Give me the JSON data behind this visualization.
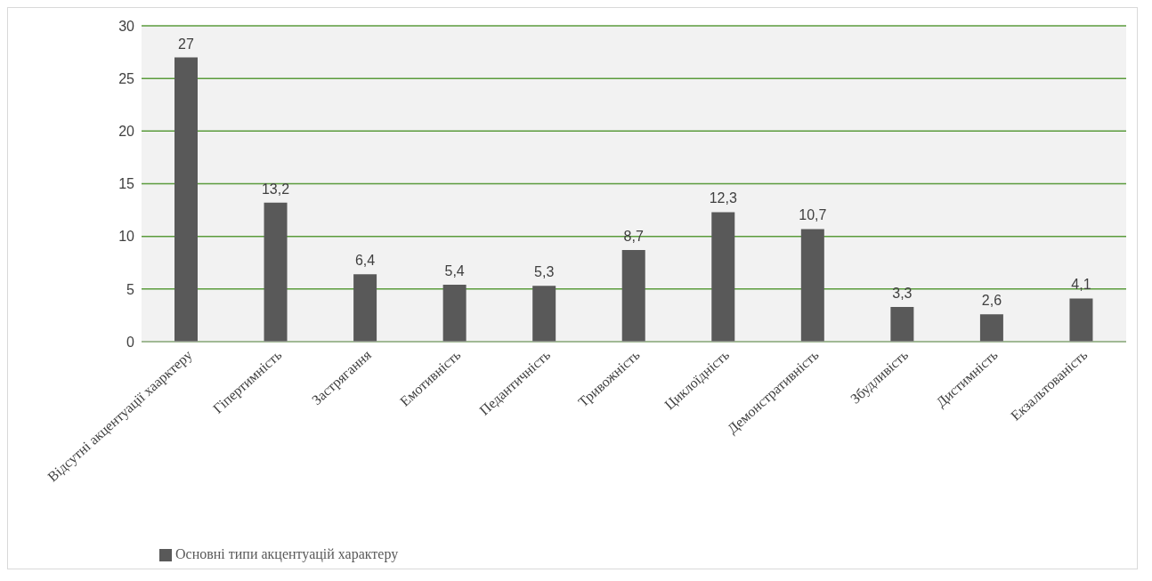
{
  "chart_data": {
    "type": "bar",
    "categories": [
      "Відсутні акцентуації хаарктеру",
      "Гіпертимність",
      "Застрягання",
      "Емотивність",
      "Педантичність",
      "Тривожність",
      "Циклоїдність",
      "Демонстративність",
      "Збудливість",
      "Дистимність",
      "Екзальтованість"
    ],
    "series": [
      {
        "name": "Основні типи акцентуацій характеру",
        "color": "#595959",
        "values": [
          27,
          13.2,
          6.4,
          5.4,
          5.3,
          8.7,
          12.3,
          10.7,
          3.3,
          2.6,
          4.1
        ],
        "value_labels": [
          "27",
          "13,2",
          "6,4",
          "5,4",
          "5,3",
          "8,7",
          "12,3",
          "10,7",
          "3,3",
          "2,6",
          "4,1"
        ]
      }
    ],
    "ylim": [
      0,
      30
    ],
    "yticks": [
      0,
      5,
      10,
      15,
      20,
      25,
      30
    ],
    "grid": "y",
    "legend": "bottom left"
  }
}
